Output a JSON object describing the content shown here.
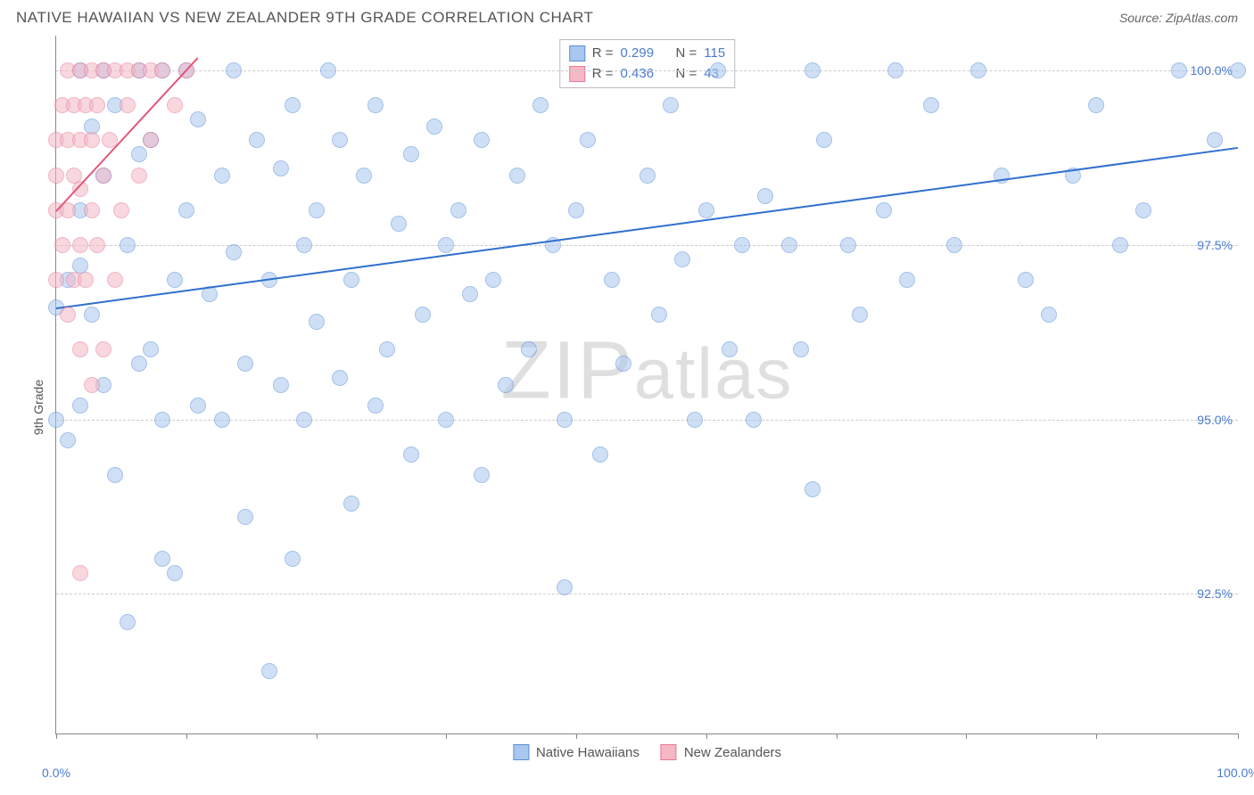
{
  "title": "NATIVE HAWAIIAN VS NEW ZEALANDER 9TH GRADE CORRELATION CHART",
  "source": "Source: ZipAtlas.com",
  "watermark": "ZIPatlas",
  "chart": {
    "type": "scatter",
    "ylabel": "9th Grade",
    "xlim": [
      0,
      100
    ],
    "ylim": [
      90.5,
      100.5
    ],
    "xticks": [
      0,
      11,
      22,
      33,
      44,
      55,
      66,
      77,
      88,
      100
    ],
    "xtick_labels": {
      "0": "0.0%",
      "100": "100.0%"
    },
    "yticks": [
      92.5,
      95.0,
      97.5,
      100.0
    ],
    "ytick_labels": [
      "92.5%",
      "95.0%",
      "97.5%",
      "100.0%"
    ],
    "grid_color": "#cccccc",
    "axis_color": "#888888",
    "background": "#ffffff",
    "point_radius": 9,
    "point_opacity": 0.55,
    "series": [
      {
        "name": "Native Hawaiians",
        "color_fill": "#a9c7ef",
        "color_stroke": "#5b8fd6",
        "r": 0.299,
        "n": 115,
        "trend": {
          "x1": 0,
          "y1": 96.6,
          "x2": 100,
          "y2": 98.9,
          "color": "#2f6fd0",
          "width": 2
        },
        "points": [
          [
            0,
            96.6
          ],
          [
            0,
            95.0
          ],
          [
            1,
            94.7
          ],
          [
            1,
            97.0
          ],
          [
            2,
            98.0
          ],
          [
            2,
            97.2
          ],
          [
            2,
            95.2
          ],
          [
            2,
            100.0
          ],
          [
            3,
            99.2
          ],
          [
            3,
            96.5
          ],
          [
            4,
            98.5
          ],
          [
            4,
            95.5
          ],
          [
            4,
            100.0
          ],
          [
            5,
            94.2
          ],
          [
            5,
            99.5
          ],
          [
            6,
            92.1
          ],
          [
            6,
            97.5
          ],
          [
            7,
            95.8
          ],
          [
            7,
            100.0
          ],
          [
            7,
            98.8
          ],
          [
            8,
            96.0
          ],
          [
            8,
            99.0
          ],
          [
            9,
            100.0
          ],
          [
            9,
            95.0
          ],
          [
            9,
            93.0
          ],
          [
            10,
            92.8
          ],
          [
            10,
            97.0
          ],
          [
            11,
            98.0
          ],
          [
            11,
            100.0
          ],
          [
            12,
            95.2
          ],
          [
            12,
            99.3
          ],
          [
            13,
            96.8
          ],
          [
            14,
            98.5
          ],
          [
            14,
            95.0
          ],
          [
            15,
            100.0
          ],
          [
            15,
            97.4
          ],
          [
            16,
            93.6
          ],
          [
            16,
            95.8
          ],
          [
            17,
            99.0
          ],
          [
            18,
            91.4
          ],
          [
            18,
            97.0
          ],
          [
            19,
            98.6
          ],
          [
            19,
            95.5
          ],
          [
            20,
            99.5
          ],
          [
            20,
            93.0
          ],
          [
            21,
            97.5
          ],
          [
            21,
            95.0
          ],
          [
            22,
            98.0
          ],
          [
            22,
            96.4
          ],
          [
            23,
            100.0
          ],
          [
            24,
            95.6
          ],
          [
            24,
            99.0
          ],
          [
            25,
            97.0
          ],
          [
            25,
            93.8
          ],
          [
            26,
            98.5
          ],
          [
            27,
            95.2
          ],
          [
            27,
            99.5
          ],
          [
            28,
            96.0
          ],
          [
            29,
            97.8
          ],
          [
            30,
            98.8
          ],
          [
            30,
            94.5
          ],
          [
            31,
            96.5
          ],
          [
            32,
            99.2
          ],
          [
            33,
            95.0
          ],
          [
            33,
            97.5
          ],
          [
            34,
            98.0
          ],
          [
            35,
            96.8
          ],
          [
            36,
            94.2
          ],
          [
            36,
            99.0
          ],
          [
            37,
            97.0
          ],
          [
            38,
            95.5
          ],
          [
            39,
            98.5
          ],
          [
            40,
            96.0
          ],
          [
            41,
            99.5
          ],
          [
            42,
            97.5
          ],
          [
            43,
            92.6
          ],
          [
            43,
            95.0
          ],
          [
            44,
            98.0
          ],
          [
            45,
            99.0
          ],
          [
            46,
            94.5
          ],
          [
            47,
            97.0
          ],
          [
            48,
            95.8
          ],
          [
            50,
            98.5
          ],
          [
            51,
            96.5
          ],
          [
            52,
            99.5
          ],
          [
            53,
            97.3
          ],
          [
            54,
            95.0
          ],
          [
            55,
            98.0
          ],
          [
            56,
            100.0
          ],
          [
            57,
            96.0
          ],
          [
            58,
            97.5
          ],
          [
            59,
            95.0
          ],
          [
            60,
            98.2
          ],
          [
            62,
            97.5
          ],
          [
            63,
            96.0
          ],
          [
            64,
            94.0
          ],
          [
            64,
            100.0
          ],
          [
            65,
            99.0
          ],
          [
            67,
            97.5
          ],
          [
            68,
            96.5
          ],
          [
            70,
            98.0
          ],
          [
            71,
            100.0
          ],
          [
            72,
            97.0
          ],
          [
            74,
            99.5
          ],
          [
            76,
            97.5
          ],
          [
            78,
            100.0
          ],
          [
            80,
            98.5
          ],
          [
            82,
            97.0
          ],
          [
            84,
            96.5
          ],
          [
            86,
            98.5
          ],
          [
            88,
            99.5
          ],
          [
            90,
            97.5
          ],
          [
            92,
            98.0
          ],
          [
            95,
            100.0
          ],
          [
            98,
            99.0
          ],
          [
            100,
            100.0
          ]
        ]
      },
      {
        "name": "New Zealanders",
        "color_fill": "#f4b8c6",
        "color_stroke": "#e77a95",
        "r": 0.436,
        "n": 43,
        "trend": {
          "x1": 0,
          "y1": 98.0,
          "x2": 12,
          "y2": 100.2,
          "color": "#e25578",
          "width": 2
        },
        "points": [
          [
            0,
            97.0
          ],
          [
            0,
            98.0
          ],
          [
            0,
            98.5
          ],
          [
            0,
            99.0
          ],
          [
            0.5,
            97.5
          ],
          [
            0.5,
            99.5
          ],
          [
            1,
            96.5
          ],
          [
            1,
            98.0
          ],
          [
            1,
            99.0
          ],
          [
            1,
            100.0
          ],
          [
            1.5,
            97.0
          ],
          [
            1.5,
            98.5
          ],
          [
            1.5,
            99.5
          ],
          [
            2,
            96.0
          ],
          [
            2,
            97.5
          ],
          [
            2,
            98.3
          ],
          [
            2,
            99.0
          ],
          [
            2,
            100.0
          ],
          [
            2.5,
            97.0
          ],
          [
            2.5,
            99.5
          ],
          [
            3,
            95.5
          ],
          [
            3,
            98.0
          ],
          [
            3,
            99.0
          ],
          [
            3,
            100.0
          ],
          [
            3.5,
            97.5
          ],
          [
            3.5,
            99.5
          ],
          [
            4,
            96.0
          ],
          [
            4,
            98.5
          ],
          [
            4,
            100.0
          ],
          [
            4.5,
            99.0
          ],
          [
            5,
            97.0
          ],
          [
            5,
            100.0
          ],
          [
            5.5,
            98.0
          ],
          [
            6,
            99.5
          ],
          [
            6,
            100.0
          ],
          [
            7,
            98.5
          ],
          [
            7,
            100.0
          ],
          [
            8,
            99.0
          ],
          [
            8,
            100.0
          ],
          [
            9,
            100.0
          ],
          [
            10,
            99.5
          ],
          [
            11,
            100.0
          ],
          [
            2,
            92.8
          ]
        ]
      }
    ],
    "legend_top": {
      "r_label": "R =",
      "n_label": "N ="
    },
    "legend_bottom": [
      {
        "label": "Native Hawaiians",
        "fill": "#a9c7ef",
        "stroke": "#5b8fd6"
      },
      {
        "label": "New Zealanders",
        "fill": "#f4b8c6",
        "stroke": "#e77a95"
      }
    ]
  }
}
